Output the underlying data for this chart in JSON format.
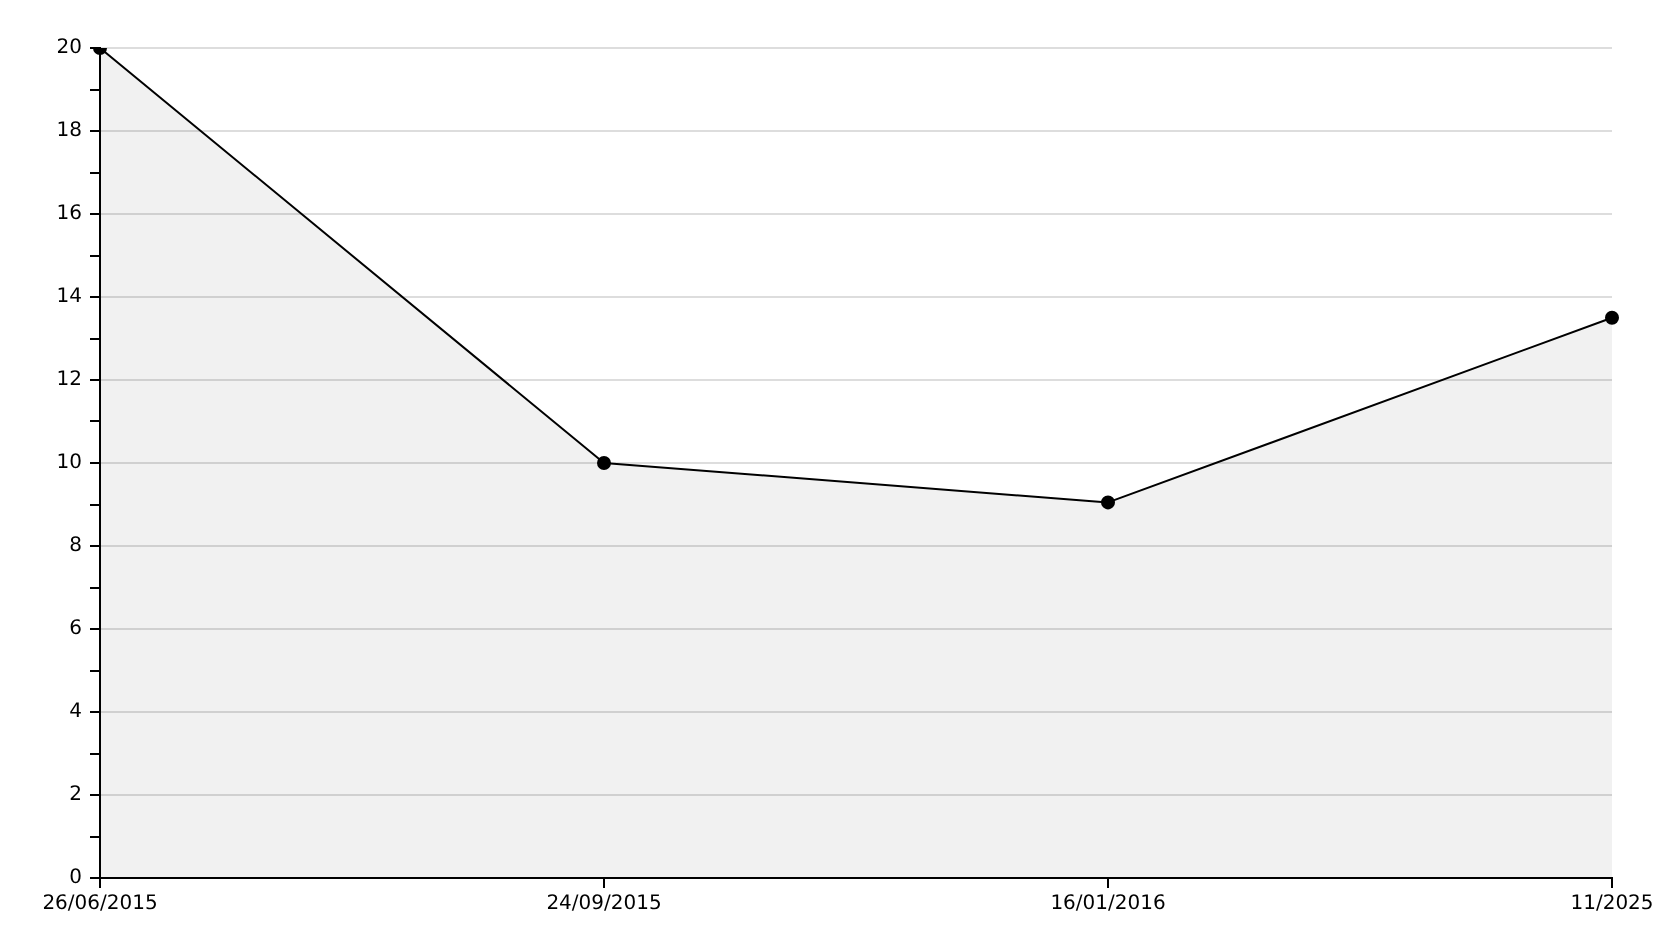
{
  "chart_data": {
    "type": "area",
    "categories": [
      "26/06/2015",
      "24/09/2015",
      "16/01/2016",
      "11/2025"
    ],
    "series": [
      {
        "color": "#000000",
        "values": [
          20,
          10,
          9.05,
          13.5
        ]
      }
    ],
    "ylim": [
      0,
      20
    ],
    "yticks": [
      0,
      {
        "value": 1,
        "label": null
      },
      2,
      {
        "value": 3,
        "label": null
      },
      4,
      {
        "value": 5,
        "label": null
      },
      6,
      {
        "value": 7,
        "label": null
      },
      8,
      {
        "value": 9,
        "label": null
      },
      10,
      {
        "value": 11,
        "label": null
      },
      12,
      {
        "value": 13,
        "label": null
      },
      14,
      {
        "value": 15,
        "label": null
      },
      16,
      {
        "value": 17,
        "label": null
      },
      18,
      {
        "value": 19,
        "label": null
      },
      20
    ],
    "grid": "y",
    "marker": "circle"
  }
}
